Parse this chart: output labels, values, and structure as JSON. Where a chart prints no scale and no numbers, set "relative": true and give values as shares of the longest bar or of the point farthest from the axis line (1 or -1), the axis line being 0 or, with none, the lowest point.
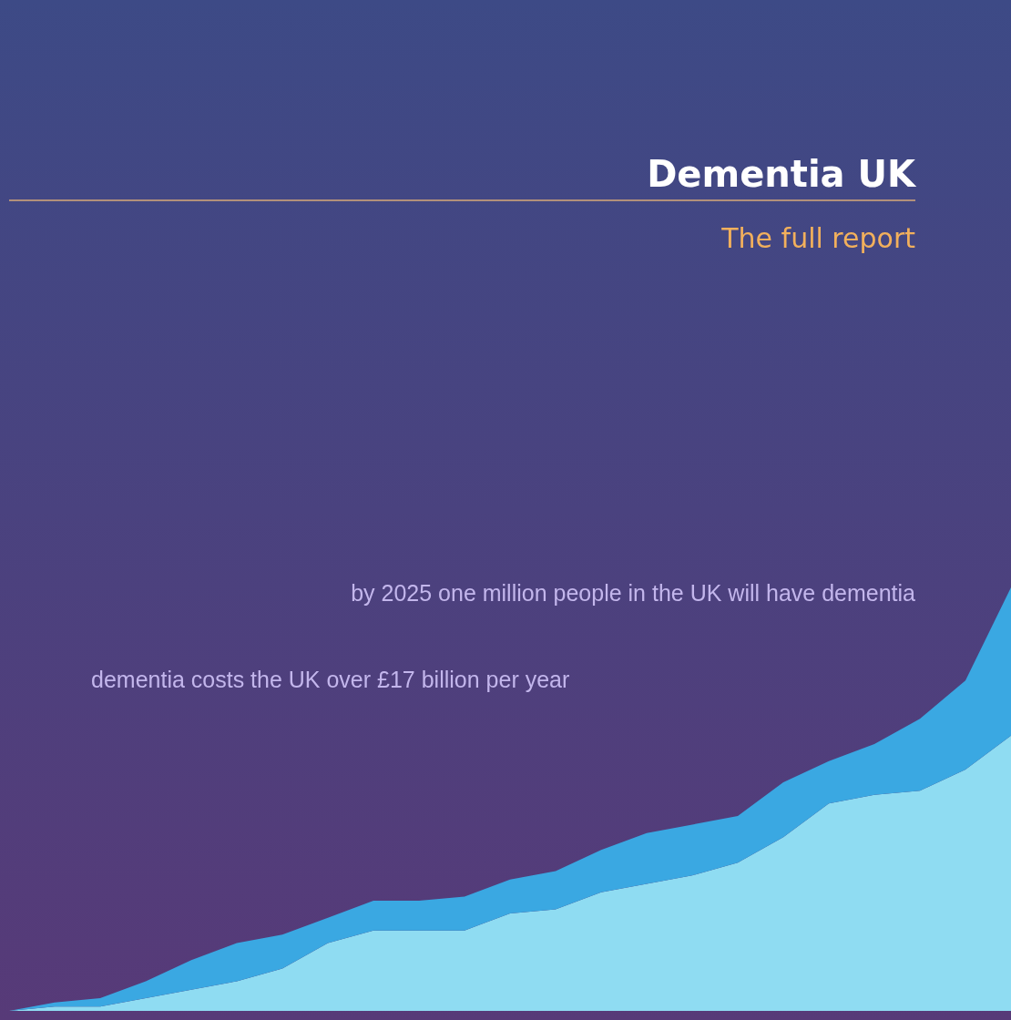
{
  "chart_data": {
    "type": "area",
    "title": "Dementia UK",
    "subtitle": "The full report",
    "annotations": [
      "by 2025 one million people in the UK will have dementia",
      "dementia costs the UK over £17 billion per year"
    ],
    "relative": true,
    "stacked": true,
    "categories": [
      null,
      null,
      null,
      null,
      null,
      null,
      null,
      null,
      null,
      null,
      null,
      null,
      null,
      null,
      null,
      null,
      null,
      null,
      null,
      null,
      null,
      null,
      null
    ],
    "series": [
      {
        "color": "#8fdcf2",
        "values": [
          0,
          0.01,
          0.01,
          0.03,
          0.05,
          0.07,
          0.1,
          0.16,
          0.19,
          0.19,
          0.19,
          0.23,
          0.24,
          0.28,
          0.3,
          0.32,
          0.35,
          0.41,
          0.49,
          0.51,
          0.52,
          0.57,
          0.65
        ]
      },
      {
        "color": "#3aa8e2",
        "values": [
          0,
          0.01,
          0.02,
          0.04,
          0.07,
          0.09,
          0.08,
          0.06,
          0.07,
          0.07,
          0.08,
          0.08,
          0.09,
          0.1,
          0.12,
          0.12,
          0.11,
          0.13,
          0.1,
          0.12,
          0.17,
          0.21,
          0.35
        ]
      }
    ]
  }
}
